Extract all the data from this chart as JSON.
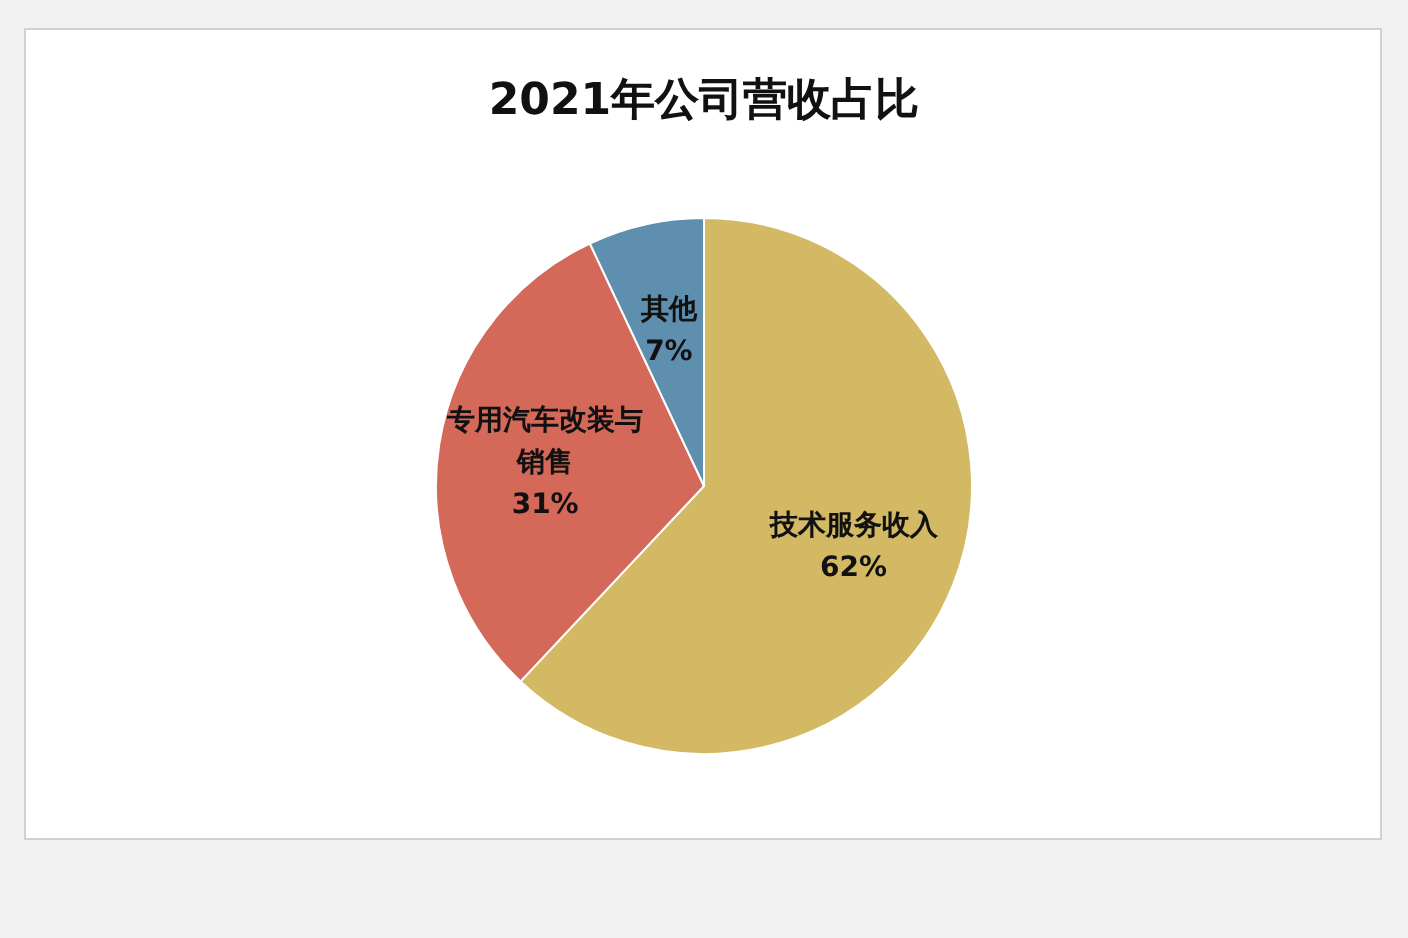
{
  "chart_data": {
    "type": "pie",
    "title": "2021年公司营收占比",
    "categories": [
      "技术服务收入",
      "专用汽车改装与销售",
      "其他"
    ],
    "values": [
      62,
      31,
      7
    ],
    "value_labels": [
      "62%",
      "31%",
      "7%"
    ],
    "colors": [
      "#d4b964",
      "#d4695a",
      "#5f8fae"
    ]
  }
}
